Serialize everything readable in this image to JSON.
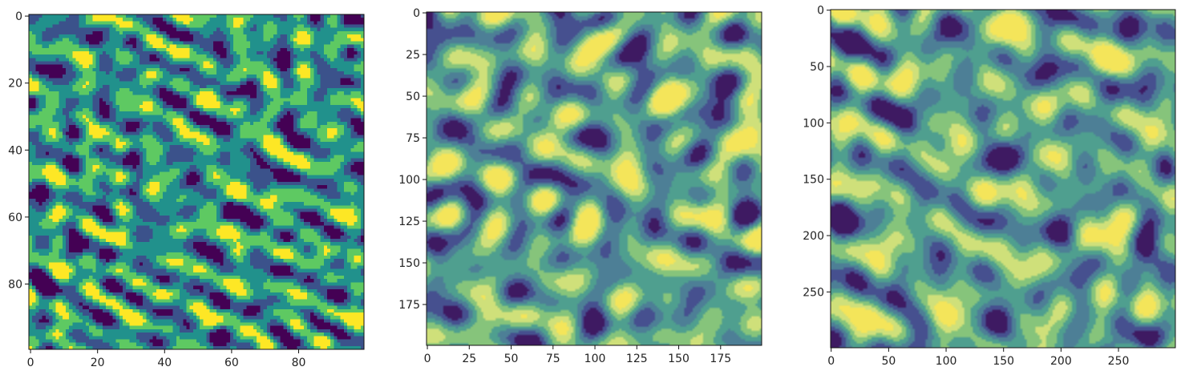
{
  "colors": {
    "levels": [
      "#440154",
      "#3b528b",
      "#21918c",
      "#5ec962",
      "#fde725"
    ],
    "palette": [
      "#3e1a62",
      "#46508f",
      "#4d7f96",
      "#4f9f8f",
      "#86c47b",
      "#cfe07a",
      "#f4e55a"
    ],
    "frame": "#111111",
    "background": "#ffffff"
  },
  "chart_data": [
    {
      "type": "heatmap",
      "title": "",
      "xlabel": "",
      "ylabel": "",
      "shape": [
        100,
        100
      ],
      "xlim": [
        0,
        99
      ],
      "ylim": [
        99,
        0
      ],
      "x_ticks": [
        "0",
        "20",
        "40",
        "60",
        "80"
      ],
      "y_ticks": [
        "0",
        "20",
        "40",
        "60",
        "80"
      ],
      "x_tick_values": [
        0,
        20,
        40,
        60,
        80
      ],
      "y_tick_values": [
        0,
        20,
        40,
        60,
        80
      ],
      "colormap": "viridis",
      "levels": 5,
      "feature_scale": 12
    },
    {
      "type": "heatmap",
      "title": "",
      "xlabel": "",
      "ylabel": "",
      "shape": [
        200,
        200
      ],
      "xlim": [
        0,
        199
      ],
      "ylim": [
        199,
        0
      ],
      "x_ticks": [
        "0",
        "25",
        "50",
        "75",
        "100",
        "125",
        "150",
        "175"
      ],
      "y_ticks": [
        "0",
        "25",
        "50",
        "75",
        "100",
        "125",
        "150",
        "175"
      ],
      "x_tick_values": [
        0,
        25,
        50,
        75,
        100,
        125,
        150,
        175
      ],
      "y_tick_values": [
        0,
        25,
        50,
        75,
        100,
        125,
        150,
        175
      ],
      "colormap": "viridis",
      "levels": 7,
      "feature_scale": 18
    },
    {
      "type": "heatmap",
      "title": "",
      "xlabel": "",
      "ylabel": "",
      "shape": [
        300,
        300
      ],
      "xlim": [
        0,
        299
      ],
      "ylim": [
        299,
        0
      ],
      "x_ticks": [
        "0",
        "50",
        "100",
        "150",
        "200",
        "250"
      ],
      "y_ticks": [
        "0",
        "50",
        "100",
        "150",
        "200",
        "250"
      ],
      "x_tick_values": [
        0,
        50,
        100,
        150,
        200,
        250
      ],
      "y_tick_values": [
        0,
        50,
        100,
        150,
        200,
        250
      ],
      "colormap": "viridis",
      "levels": 7,
      "feature_scale": 18
    }
  ]
}
